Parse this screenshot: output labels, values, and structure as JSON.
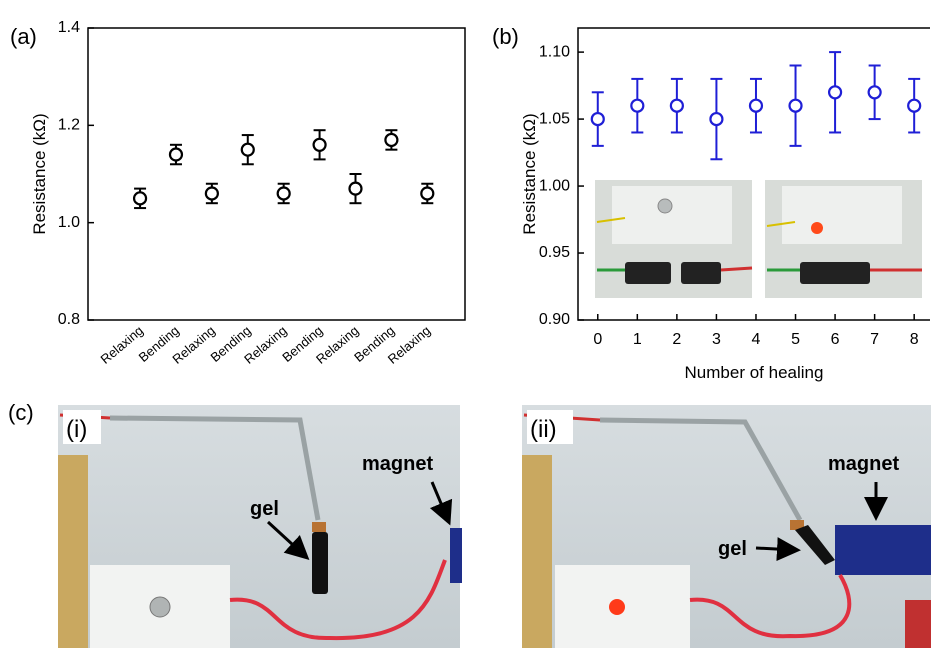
{
  "chart_data": [
    {
      "type": "errorbar",
      "label": "(a)",
      "ylabel": "Resistance (kΩ)",
      "categories": [
        "Relaxing",
        "Bending",
        "Relaxing",
        "Bending",
        "Relaxing",
        "Bending",
        "Relaxing",
        "Bending",
        "Relaxing"
      ],
      "values": [
        1.05,
        1.14,
        1.06,
        1.15,
        1.06,
        1.16,
        1.07,
        1.17,
        1.06
      ],
      "errors": [
        0.02,
        0.02,
        0.02,
        0.03,
        0.02,
        0.03,
        0.03,
        0.02,
        0.02
      ],
      "color": "#000000",
      "ylim": [
        0.8,
        1.4
      ],
      "yticks": [
        0.8,
        {
          "value": 1,
          "label": "1.0"
        },
        1.2,
        1.4
      ]
    },
    {
      "type": "errorbar",
      "label": "(b)",
      "ylabel": "Resistance (kΩ)",
      "xlabel": "Number of healing",
      "x": [
        0,
        1,
        2,
        3,
        4,
        5,
        6,
        7,
        8
      ],
      "values": [
        1.05,
        1.06,
        1.06,
        1.05,
        1.06,
        1.06,
        1.07,
        1.07,
        1.06
      ],
      "errors": [
        0.02,
        0.02,
        0.02,
        0.03,
        0.02,
        0.03,
        0.03,
        0.02,
        0.02
      ],
      "color": "#1f1fd6",
      "xlim": [
        -0.5,
        8.4
      ],
      "xticks": [
        0,
        1,
        2,
        3,
        4,
        5,
        6,
        7,
        8
      ],
      "ylim": [
        0.9,
        1.118
      ],
      "yticks": [
        {
          "value": 0.9,
          "label": "0.90"
        },
        {
          "value": 0.95,
          "label": "0.95"
        },
        {
          "value": 1,
          "label": "1.00"
        },
        {
          "value": 1.05,
          "label": "1.05"
        },
        {
          "value": 1.1,
          "label": "1.10"
        }
      ]
    }
  ],
  "panel_c": {
    "label": "(c)",
    "photos": [
      {
        "label": "(i)",
        "annotations": [
          "gel",
          "magnet"
        ]
      },
      {
        "label": "(ii)",
        "annotations": [
          "gel",
          "magnet"
        ]
      }
    ]
  }
}
